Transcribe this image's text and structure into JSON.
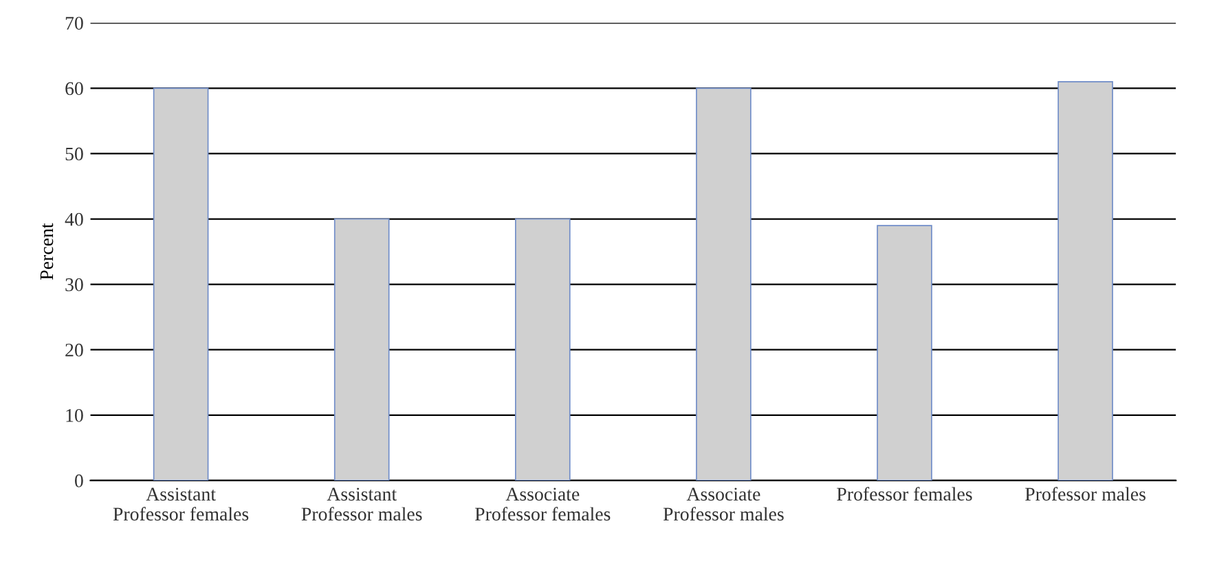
{
  "chart_data": {
    "type": "bar",
    "ylabel": "Percent",
    "categories": [
      "Assistant\nProfessor females",
      "Assistant\nProfessor males",
      "Associate\nProfessor females",
      "Associate\nProfessor males",
      "Professor females",
      "Professor males"
    ],
    "values": [
      60,
      40,
      40,
      60,
      39,
      61
    ],
    "color": "#d0d0d0",
    "ylim": [
      0,
      70
    ],
    "yticks": [
      0,
      10,
      20,
      30,
      40,
      50,
      60,
      70
    ],
    "grid": "y"
  }
}
